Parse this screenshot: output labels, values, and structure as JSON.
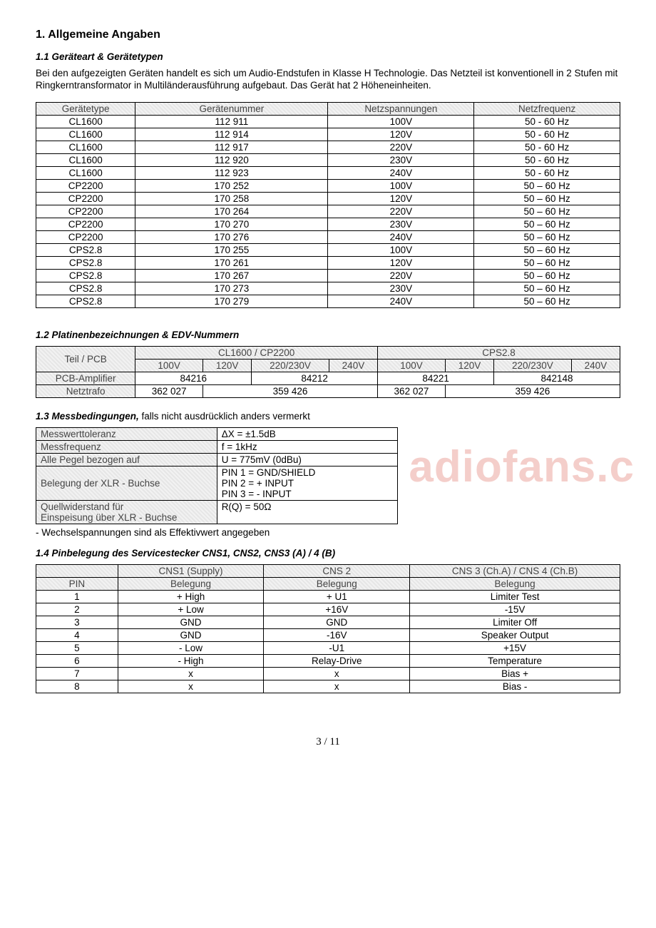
{
  "section": {
    "title": "1. Allgemeine Angaben",
    "sub1": "1.1 Geräteart & Gerätetypen",
    "intro": "Bei den aufgezeigten Geräten handelt es sich um Audio-Endstufen in Klasse H Technologie. Das Netzteil ist konventionell in 2 Stufen mit Ringkerntransformator in Multiländerausführung aufgebaut. Das Gerät hat 2 Höheneinheiten.",
    "sub2": "1.2 Platinenbezeichnungen & EDV-Nummern",
    "sub3_prefix": "1.3 Messbedingungen,",
    "sub3_suffix": " falls nicht ausdrücklich anders vermerkt",
    "sub3_note": "- Wechselspannungen sind als Effektivwert angegeben",
    "sub4": "1.4 Pinbelegung des Servicestecker CNS1, CNS2, CNS3 (A) / 4 (B)"
  },
  "table1": {
    "headers": [
      "Gerätetype",
      "Gerätenummer",
      "Netzspannungen",
      "Netzfrequenz"
    ],
    "rows": [
      [
        "CL1600",
        "112 911",
        "100V",
        "50 - 60 Hz"
      ],
      [
        "CL1600",
        "112 914",
        "120V",
        "50 - 60 Hz"
      ],
      [
        "CL1600",
        "112 917",
        "220V",
        "50 - 60 Hz"
      ],
      [
        "CL1600",
        "112 920",
        "230V",
        "50 - 60 Hz"
      ],
      [
        "CL1600",
        "112 923",
        "240V",
        "50 - 60 Hz"
      ],
      [
        "CP2200",
        "170 252",
        "100V",
        "50 – 60 Hz"
      ],
      [
        "CP2200",
        "170 258",
        "120V",
        "50 – 60 Hz"
      ],
      [
        "CP2200",
        "170 264",
        "220V",
        "50 – 60 Hz"
      ],
      [
        "CP2200",
        "170 270",
        "230V",
        "50 – 60 Hz"
      ],
      [
        "CP2200",
        "170 276",
        "240V",
        "50 – 60 Hz"
      ],
      [
        "CPS2.8",
        "170 255",
        "100V",
        "50 – 60 Hz"
      ],
      [
        "CPS2.8",
        "170 261",
        "120V",
        "50 – 60 Hz"
      ],
      [
        "CPS2.8",
        "170 267",
        "220V",
        "50 – 60 Hz"
      ],
      [
        "CPS2.8",
        "170 273",
        "230V",
        "50 – 60 Hz"
      ],
      [
        "CPS2.8",
        "170 279",
        "240V",
        "50 – 60 Hz"
      ]
    ]
  },
  "table2": {
    "row1c1": "Teil / PCB",
    "group1": "CL1600 / CP2200",
    "group2": "CPS2.8",
    "v1": "100V",
    "v2": "120V",
    "v3": "220/230V",
    "v4": "240V",
    "v5": "100V",
    "v6": "120V",
    "v7": "220/230V",
    "v8": "240V",
    "r1c0": "PCB-Amplifier",
    "r1c1": "84216",
    "r1c2": "84212",
    "r1c3": "84221",
    "r1c4": "842148",
    "r2c0": "Netztrafo",
    "r2c1": "362 027",
    "r2c2": "359 426",
    "r2c3": "362 027",
    "r2c4": "359 426"
  },
  "table3": {
    "r1c1": "Messwerttoleranz",
    "r1c2": "ΔX = ±1.5dB",
    "r2c1": "Messfrequenz",
    "r2c2": "f  = 1kHz",
    "r3c1": "Alle Pegel bezogen auf",
    "r3c2": "U = 775mV (0dBu)",
    "r4c1": "Belegung der XLR - Buchse",
    "r4l1": "PIN 1  =  GND/SHIELD",
    "r4l2": "PIN 2  =  + INPUT",
    "r4l3": "PIN 3  =  - INPUT",
    "r5c1a": "Quellwiderstand für",
    "r5c1b": "Einspeisung über XLR - Buchse",
    "r5c2": "R(Q) = 50Ω"
  },
  "table4": {
    "h_blank": "",
    "h1a": "CNS1 (Supply)",
    "h1b": "CNS 2",
    "h1c": "CNS 3 (Ch.A) / CNS 4 (Ch.B)",
    "h2a": "PIN",
    "h2b": "Belegung",
    "h2c": "Belegung",
    "h2d": "Belegung",
    "rows": [
      [
        "1",
        "+ High",
        "+ U1",
        "Limiter Test"
      ],
      [
        "2",
        "+ Low",
        "+16V",
        "-15V"
      ],
      [
        "3",
        "GND",
        "GND",
        "Limiter Off"
      ],
      [
        "4",
        "GND",
        "-16V",
        "Speaker Output"
      ],
      [
        "5",
        "- Low",
        "-U1",
        "+15V"
      ],
      [
        "6",
        "- High",
        "Relay-Drive",
        "Temperature"
      ],
      [
        "7",
        "x",
        "x",
        "Bias +"
      ],
      [
        "8",
        "x",
        "x",
        "Bias -"
      ]
    ]
  },
  "watermark": "adiofans.c",
  "footer": "3 / 11",
  "colors": {
    "watermark_color": "rgba(210,60,45,0.25)"
  }
}
